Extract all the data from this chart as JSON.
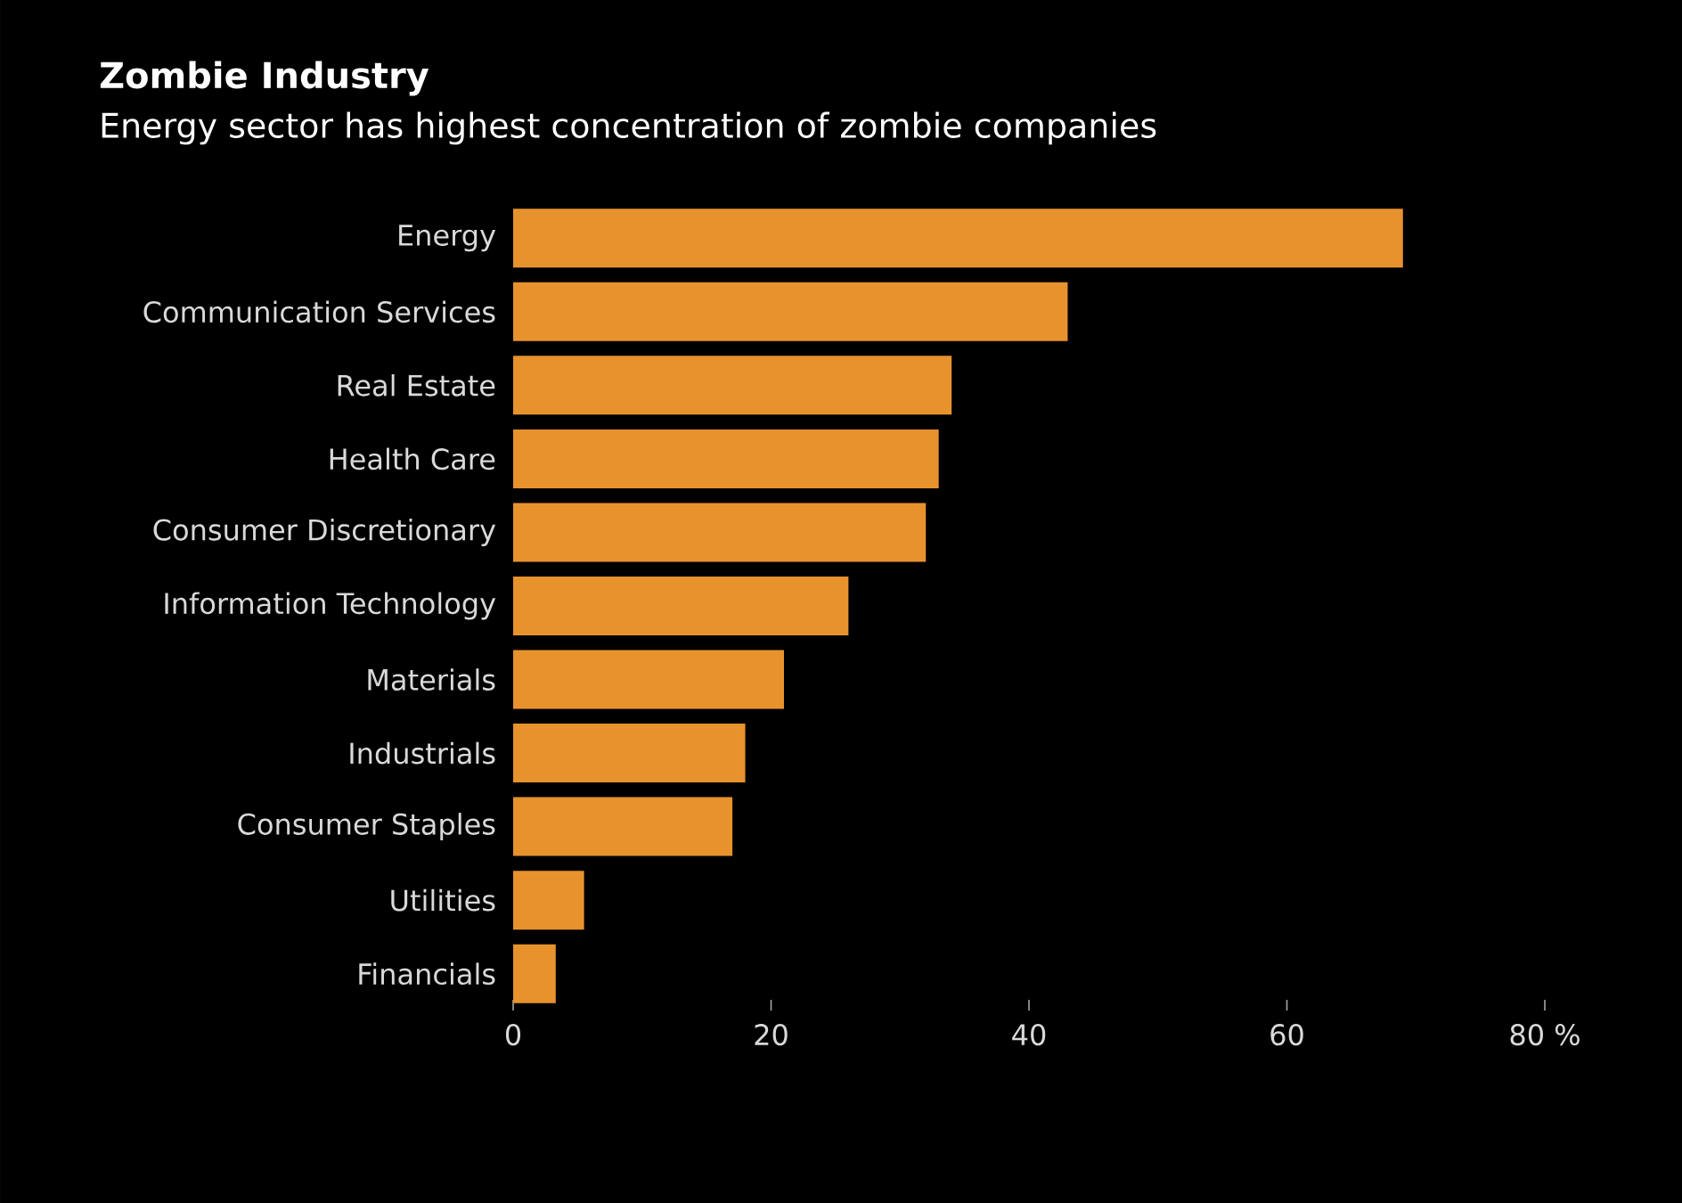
{
  "chart_data": {
    "type": "bar",
    "orientation": "horizontal",
    "title": "Zombie Industry",
    "subtitle": "Energy sector has highest concentration of zombie companies",
    "categories": [
      "Energy",
      "Communication Services",
      "Real Estate",
      "Health Care",
      "Consumer Discretionary",
      "Information Technology",
      "Materials",
      "Industrials",
      "Consumer Staples",
      "Utilities",
      "Financials"
    ],
    "values": [
      69,
      43,
      34,
      33,
      32,
      26,
      21,
      18,
      17,
      5.5,
      3.3
    ],
    "color": "#e8922e",
    "xlim": [
      0,
      80
    ],
    "xticks": [
      0,
      20,
      40,
      60,
      {
        "value": 80,
        "label": "80 %"
      }
    ]
  }
}
